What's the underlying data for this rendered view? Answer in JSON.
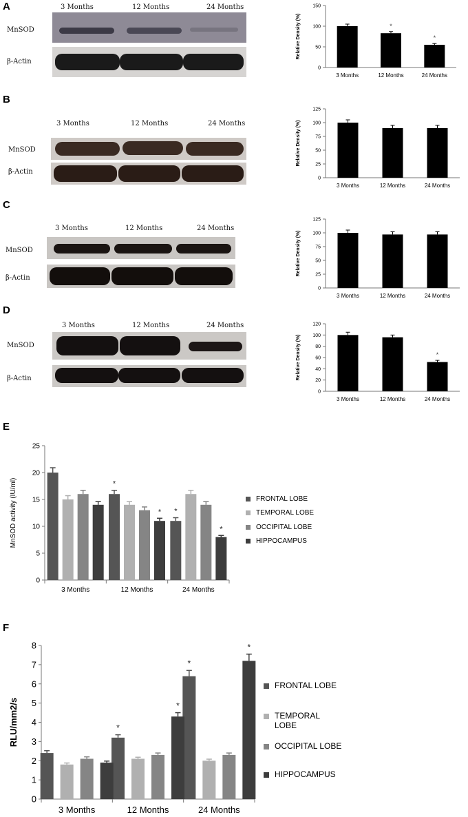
{
  "panels": {
    "A": {
      "letter": "A"
    },
    "B": {
      "letter": "B"
    },
    "C": {
      "letter": "C"
    },
    "D": {
      "letter": "D"
    },
    "E": {
      "letter": "E"
    },
    "F": {
      "letter": "F"
    }
  },
  "blots": {
    "A": {
      "cols": [
        "3 Months",
        "12 Months",
        "24 Months"
      ],
      "rows": [
        "MnSOD",
        "β-Actin"
      ]
    },
    "B": {
      "cols": [
        "3 Months",
        "12 Months",
        "24 Months"
      ],
      "rows": [
        "MnSOD",
        "β-Actin"
      ]
    },
    "C": {
      "cols": [
        "3 Months",
        "12 Months",
        "24 Months"
      ],
      "rows": [
        "MnSOD",
        "β-Actin"
      ]
    },
    "D": {
      "cols": [
        "3 Months",
        "12 Months",
        "24 Months"
      ],
      "rows": [
        "MnSOD",
        "β-Actin"
      ]
    }
  },
  "colors": {
    "bar_black": "#000000",
    "frontal": "#555555",
    "temporal": "#b0b0b0",
    "occipital": "#858585",
    "hippocampus": "#3d3d3d",
    "blot_bg": "#c9c6c3"
  },
  "chart_data": [
    {
      "panel": "A",
      "type": "bar",
      "categories": [
        "3 Months",
        "12 Months",
        "24 Months"
      ],
      "values": [
        100,
        83,
        55
      ],
      "errors": [
        5,
        4,
        3
      ],
      "significance": [
        "",
        "*",
        "*"
      ],
      "ylabel": "Relative Density (%)",
      "ylim": [
        0,
        150
      ],
      "yticks": [
        0,
        50,
        100,
        150
      ],
      "grid": false
    },
    {
      "panel": "B",
      "type": "bar",
      "categories": [
        "3 Months",
        "12 Months",
        "24 Months"
      ],
      "values": [
        100,
        90,
        90
      ],
      "errors": [
        5,
        5,
        5
      ],
      "significance": [
        "",
        "",
        ""
      ],
      "ylabel": "Relative Density (%)",
      "ylim": [
        0,
        125
      ],
      "yticks": [
        0,
        25,
        50,
        75,
        100,
        125
      ],
      "grid": false
    },
    {
      "panel": "C",
      "type": "bar",
      "categories": [
        "3 Months",
        "12 Months",
        "24 Months"
      ],
      "values": [
        100,
        97,
        97
      ],
      "errors": [
        5,
        5,
        5
      ],
      "significance": [
        "",
        "",
        ""
      ],
      "ylabel": "Relative Density (%)",
      "ylim": [
        0,
        125
      ],
      "yticks": [
        0,
        25,
        50,
        75,
        100,
        125
      ],
      "grid": false
    },
    {
      "panel": "D",
      "type": "bar",
      "categories": [
        "3 Months",
        "12 Months",
        "24 Months"
      ],
      "values": [
        100,
        96,
        52
      ],
      "errors": [
        5,
        4,
        3
      ],
      "significance": [
        "",
        "",
        "*"
      ],
      "ylabel": "Relative Density (%)",
      "ylim": [
        0,
        120
      ],
      "yticks": [
        0,
        20,
        40,
        60,
        80,
        100,
        120
      ],
      "grid": false
    },
    {
      "panel": "E",
      "type": "bar",
      "categories": [
        "3 Months",
        "12 Months",
        "24 Months"
      ],
      "series": [
        {
          "name": "FRONTAL LOBE",
          "values": [
            20,
            16,
            11
          ],
          "errors": [
            0.9,
            0.7,
            0.6
          ],
          "significance": [
            "",
            "*",
            "*"
          ]
        },
        {
          "name": "TEMPORAL LOBE",
          "values": [
            15,
            14,
            16
          ],
          "errors": [
            0.7,
            0.6,
            0.7
          ],
          "significance": [
            "",
            "",
            ""
          ]
        },
        {
          "name": "OCCIPITAL LOBE",
          "values": [
            16,
            13,
            14
          ],
          "errors": [
            0.7,
            0.6,
            0.6
          ],
          "significance": [
            "",
            "",
            ""
          ]
        },
        {
          "name": "HIPPOCAMPUS",
          "values": [
            14,
            11,
            8
          ],
          "errors": [
            0.6,
            0.5,
            0.3
          ],
          "significance": [
            "",
            "*",
            "*"
          ]
        }
      ],
      "ylabel": "MnSOD activity (IU/ml)",
      "ylim": [
        0,
        25
      ],
      "yticks": [
        0,
        5,
        10,
        15,
        20,
        25
      ],
      "grid": false,
      "legend": "right"
    },
    {
      "panel": "F",
      "type": "bar",
      "categories": [
        "3 Months",
        "12 Months",
        "24 Months"
      ],
      "series": [
        {
          "name": "FRONTAL LOBE",
          "values": [
            2.4,
            3.2,
            6.4
          ],
          "errors": [
            0.12,
            0.15,
            0.3
          ],
          "significance": [
            "",
            "*",
            "*"
          ]
        },
        {
          "name": "TEMPORAL LOBE",
          "values": [
            1.8,
            2.1,
            2.0
          ],
          "errors": [
            0.08,
            0.08,
            0.08
          ],
          "significance": [
            "",
            "",
            ""
          ]
        },
        {
          "name": "OCCIPITAL LOBE",
          "values": [
            2.1,
            2.3,
            2.3
          ],
          "errors": [
            0.1,
            0.1,
            0.1
          ],
          "significance": [
            "",
            "",
            ""
          ]
        },
        {
          "name": "HIPPOCAMPUS",
          "values": [
            1.9,
            4.3,
            7.2
          ],
          "errors": [
            0.08,
            0.2,
            0.35
          ],
          "significance": [
            "",
            "*",
            "*"
          ]
        }
      ],
      "ylabel": "RLU/mm2/s",
      "ylim": [
        0,
        8
      ],
      "yticks": [
        0,
        1,
        2,
        3,
        4,
        5,
        6,
        7,
        8
      ],
      "grid": false,
      "legend": "right"
    }
  ]
}
